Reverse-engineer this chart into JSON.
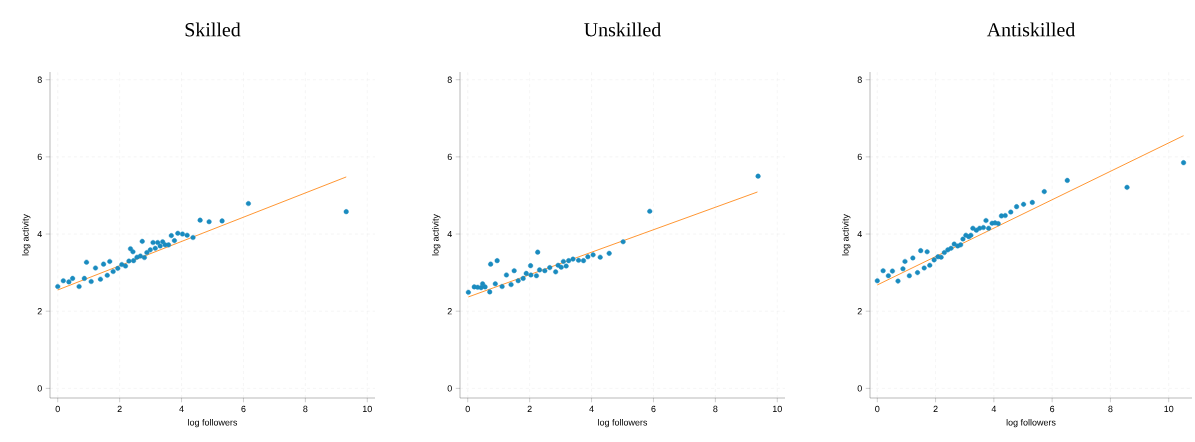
{
  "chart_data": [
    {
      "type": "scatter",
      "title": "Skilled",
      "xlabel": "log followers",
      "ylabel": "log activity",
      "xlim": [
        -0.25,
        10.25
      ],
      "ylim": [
        -0.25,
        8.2
      ],
      "xticks": [
        0,
        2,
        4,
        6,
        8,
        10
      ],
      "yticks": [
        0,
        2,
        4,
        6,
        8
      ],
      "grid": true,
      "series": [
        {
          "marker": "circle",
          "color": "#1a8bbf",
          "x": [
            0,
            0.18,
            0.36,
            0.48,
            0.69,
            0.86,
            0.93,
            1.08,
            1.22,
            1.38,
            1.48,
            1.6,
            1.68,
            1.79,
            1.94,
            2.07,
            2.19,
            2.3,
            2.35,
            2.43,
            2.45,
            2.56,
            2.67,
            2.73,
            2.8,
            2.88,
            2.99,
            3.08,
            3.15,
            3.23,
            3.31,
            3.39,
            3.47,
            3.58,
            3.67,
            3.77,
            3.88,
            4.03,
            4.18,
            4.37,
            4.6,
            4.89,
            5.31,
            6.16,
            9.32
          ],
          "values": [
            2.64,
            2.79,
            2.76,
            2.85,
            2.64,
            2.85,
            3.27,
            2.77,
            3.12,
            2.83,
            3.22,
            2.93,
            3.29,
            3.03,
            3.11,
            3.21,
            3.17,
            3.3,
            3.62,
            3.54,
            3.31,
            3.4,
            3.43,
            3.81,
            3.39,
            3.52,
            3.59,
            3.78,
            3.63,
            3.78,
            3.69,
            3.8,
            3.72,
            3.72,
            3.96,
            3.83,
            4.02,
            4.0,
            3.97,
            3.91,
            4.36,
            4.32,
            4.34,
            4.79,
            4.58
          ]
        },
        {
          "type": "line",
          "color": "#ff8a1c",
          "x": [
            0,
            9.32
          ],
          "values": [
            2.55,
            5.48
          ]
        }
      ]
    },
    {
      "type": "scatter",
      "title": "Unskilled",
      "xlabel": "log followers",
      "ylabel": "log activity",
      "xlim": [
        -0.25,
        10.25
      ],
      "ylim": [
        -0.25,
        8.2
      ],
      "xticks": [
        0,
        2,
        4,
        6,
        8,
        10
      ],
      "yticks": [
        0,
        2,
        4,
        6,
        8
      ],
      "grid": true,
      "series": [
        {
          "marker": "circle",
          "color": "#1a8bbf",
          "x": [
            0.02,
            0.21,
            0.32,
            0.43,
            0.48,
            0.56,
            0.71,
            0.74,
            0.89,
            0.95,
            1.11,
            1.25,
            1.4,
            1.5,
            1.63,
            1.79,
            1.89,
            2.03,
            2.04,
            2.22,
            2.26,
            2.32,
            2.49,
            2.65,
            2.84,
            2.92,
            3.02,
            3.09,
            3.18,
            3.26,
            3.4,
            3.58,
            3.74,
            3.88,
            4.05,
            4.28,
            4.57,
            5.02,
            5.88,
            9.38
          ],
          "values": [
            2.49,
            2.63,
            2.62,
            2.61,
            2.71,
            2.63,
            2.5,
            3.22,
            2.71,
            3.31,
            2.64,
            2.94,
            2.69,
            3.05,
            2.79,
            2.85,
            2.98,
            3.18,
            2.94,
            2.92,
            3.53,
            3.07,
            3.05,
            3.13,
            3.02,
            3.19,
            3.14,
            3.29,
            3.17,
            3.31,
            3.35,
            3.32,
            3.31,
            3.41,
            3.46,
            3.4,
            3.5,
            3.8,
            4.59,
            5.5
          ]
        },
        {
          "type": "line",
          "color": "#ff8a1c",
          "x": [
            0.02,
            9.36
          ],
          "values": [
            2.37,
            5.09
          ]
        }
      ]
    },
    {
      "type": "scatter",
      "title": "Antiskilled",
      "xlabel": "log followers",
      "ylabel": "log activity",
      "xlim": [
        -0.25,
        10.8
      ],
      "ylim": [
        -0.25,
        8.2
      ],
      "xticks": [
        0,
        2,
        4,
        6,
        8,
        10
      ],
      "yticks": [
        0,
        2,
        4,
        6,
        8
      ],
      "grid": true,
      "series": [
        {
          "marker": "circle",
          "color": "#1a8bbf",
          "x": [
            0,
            0.2,
            0.38,
            0.52,
            0.71,
            0.88,
            0.95,
            1.1,
            1.22,
            1.38,
            1.49,
            1.61,
            1.71,
            1.8,
            1.95,
            2.08,
            2.19,
            2.3,
            2.42,
            2.53,
            2.64,
            2.76,
            2.86,
            2.94,
            3.04,
            3.14,
            3.21,
            3.28,
            3.4,
            3.51,
            3.64,
            3.73,
            3.82,
            3.94,
            4.04,
            4.15,
            4.26,
            4.39,
            4.58,
            4.78,
            5.02,
            5.32,
            5.73,
            6.52,
            8.57,
            10.51
          ],
          "values": [
            2.79,
            3.05,
            2.92,
            3.04,
            2.78,
            3.1,
            3.29,
            2.92,
            3.38,
            3.0,
            3.57,
            3.12,
            3.54,
            3.19,
            3.33,
            3.41,
            3.4,
            3.52,
            3.59,
            3.63,
            3.74,
            3.69,
            3.72,
            3.87,
            3.97,
            3.93,
            3.97,
            4.15,
            4.1,
            4.15,
            4.17,
            4.35,
            4.15,
            4.28,
            4.29,
            4.27,
            4.47,
            4.48,
            4.57,
            4.71,
            4.77,
            4.82,
            5.1,
            5.39,
            5.21,
            5.85
          ]
        },
        {
          "type": "line",
          "color": "#ff8a1c",
          "x": [
            0,
            10.51
          ],
          "values": [
            2.68,
            6.55
          ]
        }
      ]
    }
  ]
}
